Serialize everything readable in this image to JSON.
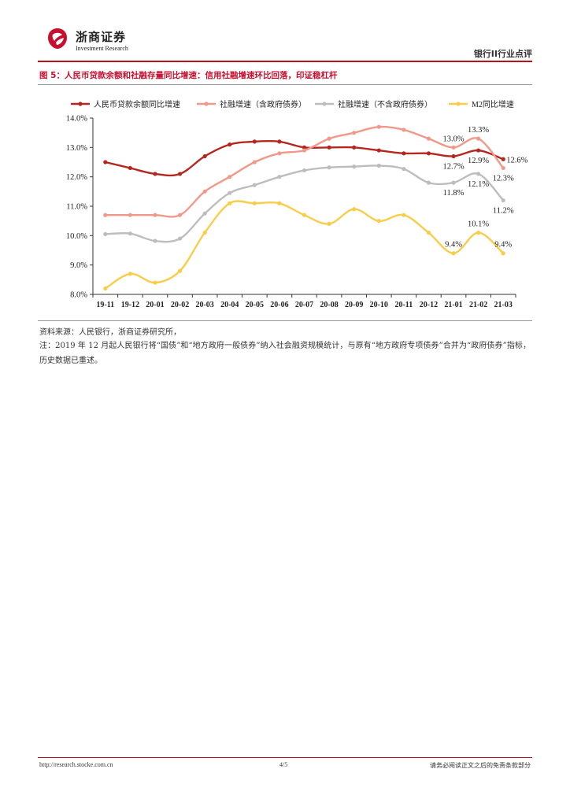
{
  "header": {
    "brand_cn": "浙商证券",
    "brand_en": "Investment Research",
    "section": "银行II行业点评",
    "brand_color": "#b5121b"
  },
  "figure": {
    "title": "图 5：人民币贷款余额和社融存量同比增速：信用社融增速环比回落，印证稳杠杆"
  },
  "chart_data": {
    "type": "line",
    "categories": [
      "19-11",
      "19-12",
      "20-01",
      "20-02",
      "20-03",
      "20-04",
      "20-05",
      "20-06",
      "20-07",
      "20-08",
      "20-09",
      "20-10",
      "20-11",
      "20-12",
      "21-01",
      "21-02",
      "21-03"
    ],
    "ylim": [
      8.0,
      14.0
    ],
    "yticks": [
      "8.0%",
      "9.0%",
      "10.0%",
      "11.0%",
      "12.0%",
      "13.0%",
      "14.0%"
    ],
    "xlabel": "",
    "ylabel": "",
    "legend_position": "top",
    "grid": false,
    "series": [
      {
        "name": "人民币贷款余额同比增速",
        "color": "#b5271e",
        "values": [
          12.5,
          12.3,
          12.1,
          12.1,
          12.7,
          13.1,
          13.2,
          13.2,
          13.0,
          13.0,
          13.0,
          12.9,
          12.8,
          12.8,
          12.7,
          12.9,
          12.6
        ]
      },
      {
        "name": "社融增速（含政府债券）",
        "color": "#f0998b",
        "values": [
          10.7,
          10.7,
          10.7,
          10.7,
          11.5,
          12.0,
          12.5,
          12.8,
          12.9,
          13.3,
          13.5,
          13.7,
          13.6,
          13.3,
          13.0,
          13.3,
          12.3
        ]
      },
      {
        "name": "社融增速（不含政府债券）",
        "color": "#bdbdbd",
        "values": [
          10.05,
          10.07,
          9.82,
          9.9,
          10.75,
          11.45,
          11.72,
          12.0,
          12.22,
          12.32,
          12.35,
          12.38,
          12.27,
          11.8,
          11.8,
          12.1,
          11.2
        ]
      },
      {
        "name": "M2同比增速",
        "color": "#f7cd4a",
        "values": [
          8.2,
          8.7,
          8.4,
          8.8,
          10.1,
          11.1,
          11.1,
          11.1,
          10.7,
          10.4,
          10.9,
          10.5,
          10.7,
          10.1,
          9.4,
          10.1,
          9.4
        ]
      }
    ],
    "annotations": [
      {
        "text": "13.0%",
        "index": 14,
        "value": 13.0,
        "pos": "above"
      },
      {
        "text": "13.3%",
        "index": 15,
        "value": 13.3,
        "pos": "above"
      },
      {
        "text": "12.7%",
        "index": 14,
        "value": 12.7,
        "pos": "below"
      },
      {
        "text": "12.9%",
        "index": 15,
        "value": 12.9,
        "pos": "below"
      },
      {
        "text": "12.6%",
        "index": 16,
        "value": 12.6,
        "pos": "right"
      },
      {
        "text": "12.3%",
        "index": 16,
        "value": 12.3,
        "pos": "below"
      },
      {
        "text": "11.8%",
        "index": 14,
        "value": 11.8,
        "pos": "below"
      },
      {
        "text": "12.1%",
        "index": 15,
        "value": 12.1,
        "pos": "below"
      },
      {
        "text": "11.2%",
        "index": 16,
        "value": 11.2,
        "pos": "below"
      },
      {
        "text": "10.1%",
        "index": 15,
        "value": 10.1,
        "pos": "above"
      },
      {
        "text": "9.4%",
        "index": 14,
        "value": 9.4,
        "pos": "above"
      },
      {
        "text": "9.4%",
        "index": 16,
        "value": 9.4,
        "pos": "above"
      }
    ]
  },
  "source": "资料来源：人民银行，浙商证券研究所，",
  "note": "注：2019 年 12 月起人民银行将“国债”和“地方政府一般债券”纳入社会融资规模统计，与原有“地方政府专项债券”合并为“政府债券”指标，历史数据已重述。",
  "footer": {
    "url": "http://research.stocke.com.cn",
    "page": "4/5",
    "disclaimer": "请务必阅读正文之后的免责条款部分"
  }
}
